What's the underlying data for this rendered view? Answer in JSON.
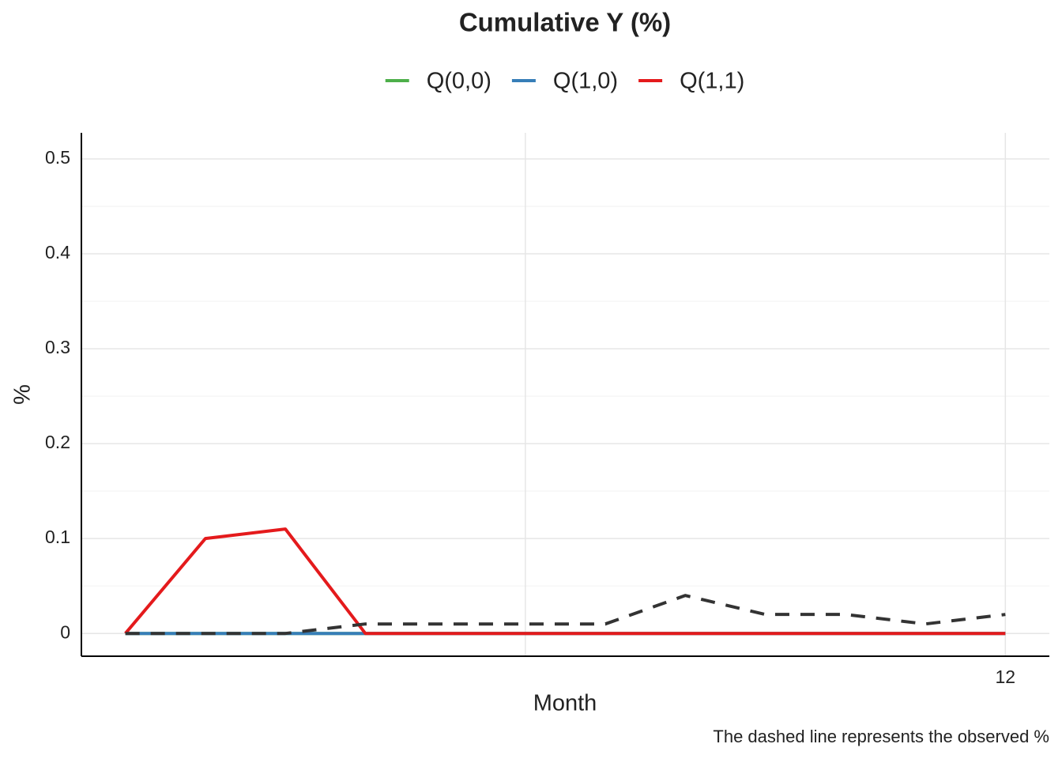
{
  "chart_data": {
    "type": "line",
    "title": "Cumulative Y (%)",
    "x_label": "Month",
    "y_label": "%",
    "caption": "The dashed line represents the observed %",
    "x": [
      1,
      2,
      3,
      4,
      5,
      6,
      7,
      8,
      9,
      10,
      11,
      12
    ],
    "series": [
      {
        "name": "Q(0,0)",
        "color": "#4daf4a",
        "values": [
          0,
          0,
          0,
          0,
          0,
          0,
          0,
          0,
          0,
          0,
          0,
          0
        ]
      },
      {
        "name": "Q(1,0)",
        "color": "#377eb8",
        "values": [
          0,
          0,
          0,
          0,
          0,
          0,
          0,
          0,
          0,
          0,
          0,
          0
        ]
      },
      {
        "name": "Q(1,1)",
        "color": "#e41a1c",
        "values": [
          0,
          0.1,
          0.11,
          0,
          0,
          0,
          0,
          0,
          0,
          0,
          0,
          0
        ]
      }
    ],
    "observed": {
      "color": "#333333",
      "dashed": true,
      "values": [
        0,
        0,
        0,
        0.01,
        0.01,
        0.01,
        0.01,
        0.04,
        0.02,
        0.02,
        0.01,
        0.02
      ]
    },
    "xlim": [
      0.45,
      12.55
    ],
    "xticks": [
      {
        "value": 6,
        "label": null
      },
      12
    ],
    "ylim": [
      -0.024,
      0.5275
    ],
    "yticks": [
      0,
      0.1,
      0.2,
      0.3,
      0.4,
      0.5
    ],
    "grid": true,
    "legend": "top"
  }
}
